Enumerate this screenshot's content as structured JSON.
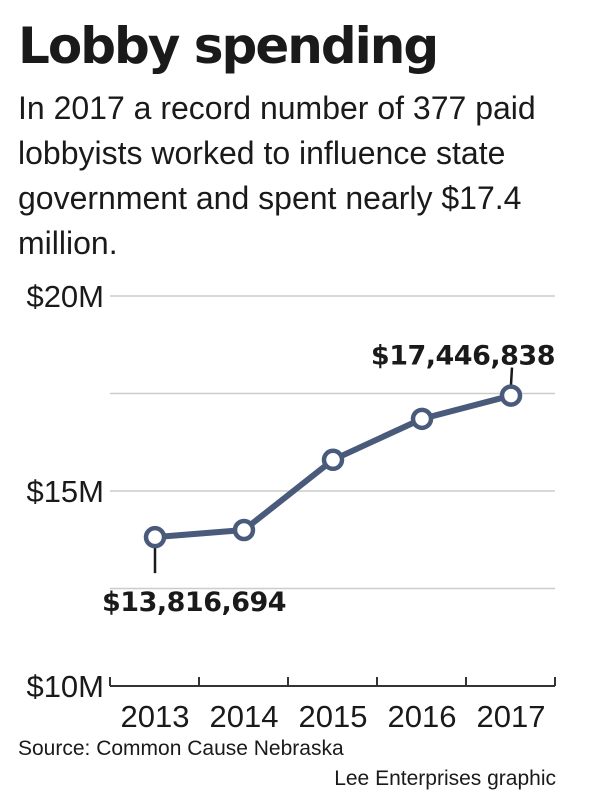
{
  "title": "Lobby spending",
  "subtitle": "In 2017 a record number of 377 paid lobbyists worked to influence state government and spent nearly $17.4 million.",
  "source": "Source: Common Cause Nebraska",
  "credit": "Lee Enterprises graphic",
  "chart_data": {
    "type": "line",
    "title": "",
    "xlabel": "",
    "ylabel": "",
    "categories": [
      "2013",
      "2014",
      "2015",
      "2016",
      "2017"
    ],
    "series": [
      {
        "values": [
          13816694,
          14000000,
          15800000,
          16850000,
          17446838
        ]
      }
    ],
    "ylim": [
      10000000,
      20000000
    ],
    "yticks": [
      10000000,
      12500000,
      15000000,
      17500000,
      20000000
    ],
    "ytick_labels": [
      "$10M",
      "",
      "$15M",
      "",
      "$20M"
    ],
    "grid": true,
    "data_labels": [
      {
        "index": 0,
        "text": "$13,816,694",
        "position": "below"
      },
      {
        "index": 4,
        "text": "$17,446,838",
        "position": "above"
      }
    ],
    "colors": {
      "line": "#4a5a7a",
      "marker_fill": "#ffffff",
      "grid": "#cccccc",
      "axis": "#333333"
    }
  }
}
